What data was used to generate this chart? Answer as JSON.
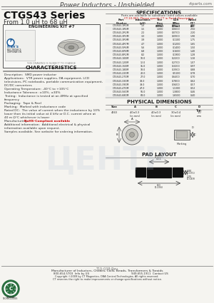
{
  "title_header": "Power Inductors - Unshielded",
  "website": "ctparts.com",
  "series_title": "CTGS43 Series",
  "series_subtitle": "From 1.0 μH to 68 μH",
  "eng_kit": "ENGINEERING KIT #7",
  "bg_color": "#f5f4f0",
  "white": "#ffffff",
  "black": "#000000",
  "header_line_color": "#999999",
  "dark_gray": "#333333",
  "medium_gray": "#666666",
  "light_gray": "#cccccc",
  "green_logo": "#2a6e3f",
  "red_text": "#cc0000",
  "blue_watermark": "#a8b8d0",
  "char_title": "CHARACTERISTICS",
  "char_lines": [
    "Description:  SMD power inductor",
    "Applications:  VTR power supplies, DA equipment, LCD",
    "televisions, PC notebooks, portable communication equipment,",
    "DC/DC converters",
    "Operating Temperature: -40°C to +105°C",
    "Inductance Tolerance: ±10%, ±30%",
    "Testing:  Inductance is tested at an 4MHz at specified",
    "frequency",
    "Packaging:  Tape & Reel",
    "Marking:  Marked with inductance code",
    "Rated DC:  The value of current when the inductance by 10%",
    "lower than its initial value at 4 kHz or D.C. current when at",
    "40 m Ω°C whichever is lower",
    "Manufacturing:  RoHS-Compliant available",
    "Additional information:  Additional electrical & physical",
    "information available upon request.",
    "Samples available. See website for ordering information."
  ],
  "spec_title": "SPECIFICATIONS",
  "spec_note1": "Parts are available to substitute listed values available",
  "spec_note2": "CT-10-002. Please specify CT in Part# Description",
  "spec_data": [
    [
      "CTGS43-1R0M",
      "1.0",
      "1.000",
      "0.0500",
      "2.80"
    ],
    [
      "CTGS43-1R5M",
      "1.5",
      "1.000",
      "0.0600",
      "2.50"
    ],
    [
      "CTGS43-2R2M",
      "2.2",
      "1.000",
      "0.0700",
      "2.20"
    ],
    [
      "CTGS43-3R3M",
      "3.3",
      "1.000",
      "0.0900",
      "1.90"
    ],
    [
      "CTGS43-3R9M",
      "3.9",
      "1.000",
      "0.1100",
      "1.75"
    ],
    [
      "CTGS43-4R7M",
      "4.7",
      "1.000",
      "0.1200",
      "1.65"
    ],
    [
      "CTGS43-5R6M",
      "5.6",
      "1.000",
      "0.1400",
      "1.50"
    ],
    [
      "CTGS43-6R8M",
      "6.8",
      "1.000",
      "0.1600",
      "1.40"
    ],
    [
      "CTGS43-8R2M",
      "8.2",
      "1.000",
      "0.1900",
      "1.28"
    ],
    [
      "CTGS43-100M",
      "10.0",
      "1.000",
      "0.2200",
      "1.18"
    ],
    [
      "CTGS43-120M",
      "12.0",
      "1.000",
      "0.2700",
      "1.07"
    ],
    [
      "CTGS43-150M",
      "15.0",
      "1.000",
      "0.3200",
      "0.97"
    ],
    [
      "CTGS43-180M",
      "18.0",
      "1.000",
      "0.3900",
      "0.88"
    ],
    [
      "CTGS43-220M",
      "22.0",
      "1.000",
      "0.5100",
      "0.78"
    ],
    [
      "CTGS43-270M",
      "27.0",
      "1.000",
      "0.6400",
      "0.70"
    ],
    [
      "CTGS43-330M",
      "33.0",
      "1.000",
      "0.7800",
      "0.62"
    ],
    [
      "CTGS43-390M",
      "39.0",
      "1.000",
      "0.9400",
      "0.57"
    ],
    [
      "CTGS43-470M",
      "47.0",
      "1.000",
      "1.1300",
      "0.52"
    ],
    [
      "CTGS43-560M",
      "56.0",
      "1.000",
      "1.3800",
      "0.46"
    ],
    [
      "CTGS43-680M",
      "68.0",
      "1.000",
      "1.6500",
      "0.40"
    ]
  ],
  "phys_title": "PHYSICAL DIMENSIONS",
  "pad_title": "PAD LAYOUT",
  "footer_doc": "T15-038-Rev",
  "footer_mfr": "Manufacturer of Inductors, Chokes, Coils, Beads, Transformers & Toroids",
  "footer_phone1": "800-654-5703  Info by US",
  "footer_phone2": "949-655-1911  Contact US",
  "footer_copy": "Copyright ©2009 by CT Magnetics, DBA Central Technologies, All rights reserved.",
  "footer_note": "CT reserves the right to make improvements or change specifications without notice."
}
